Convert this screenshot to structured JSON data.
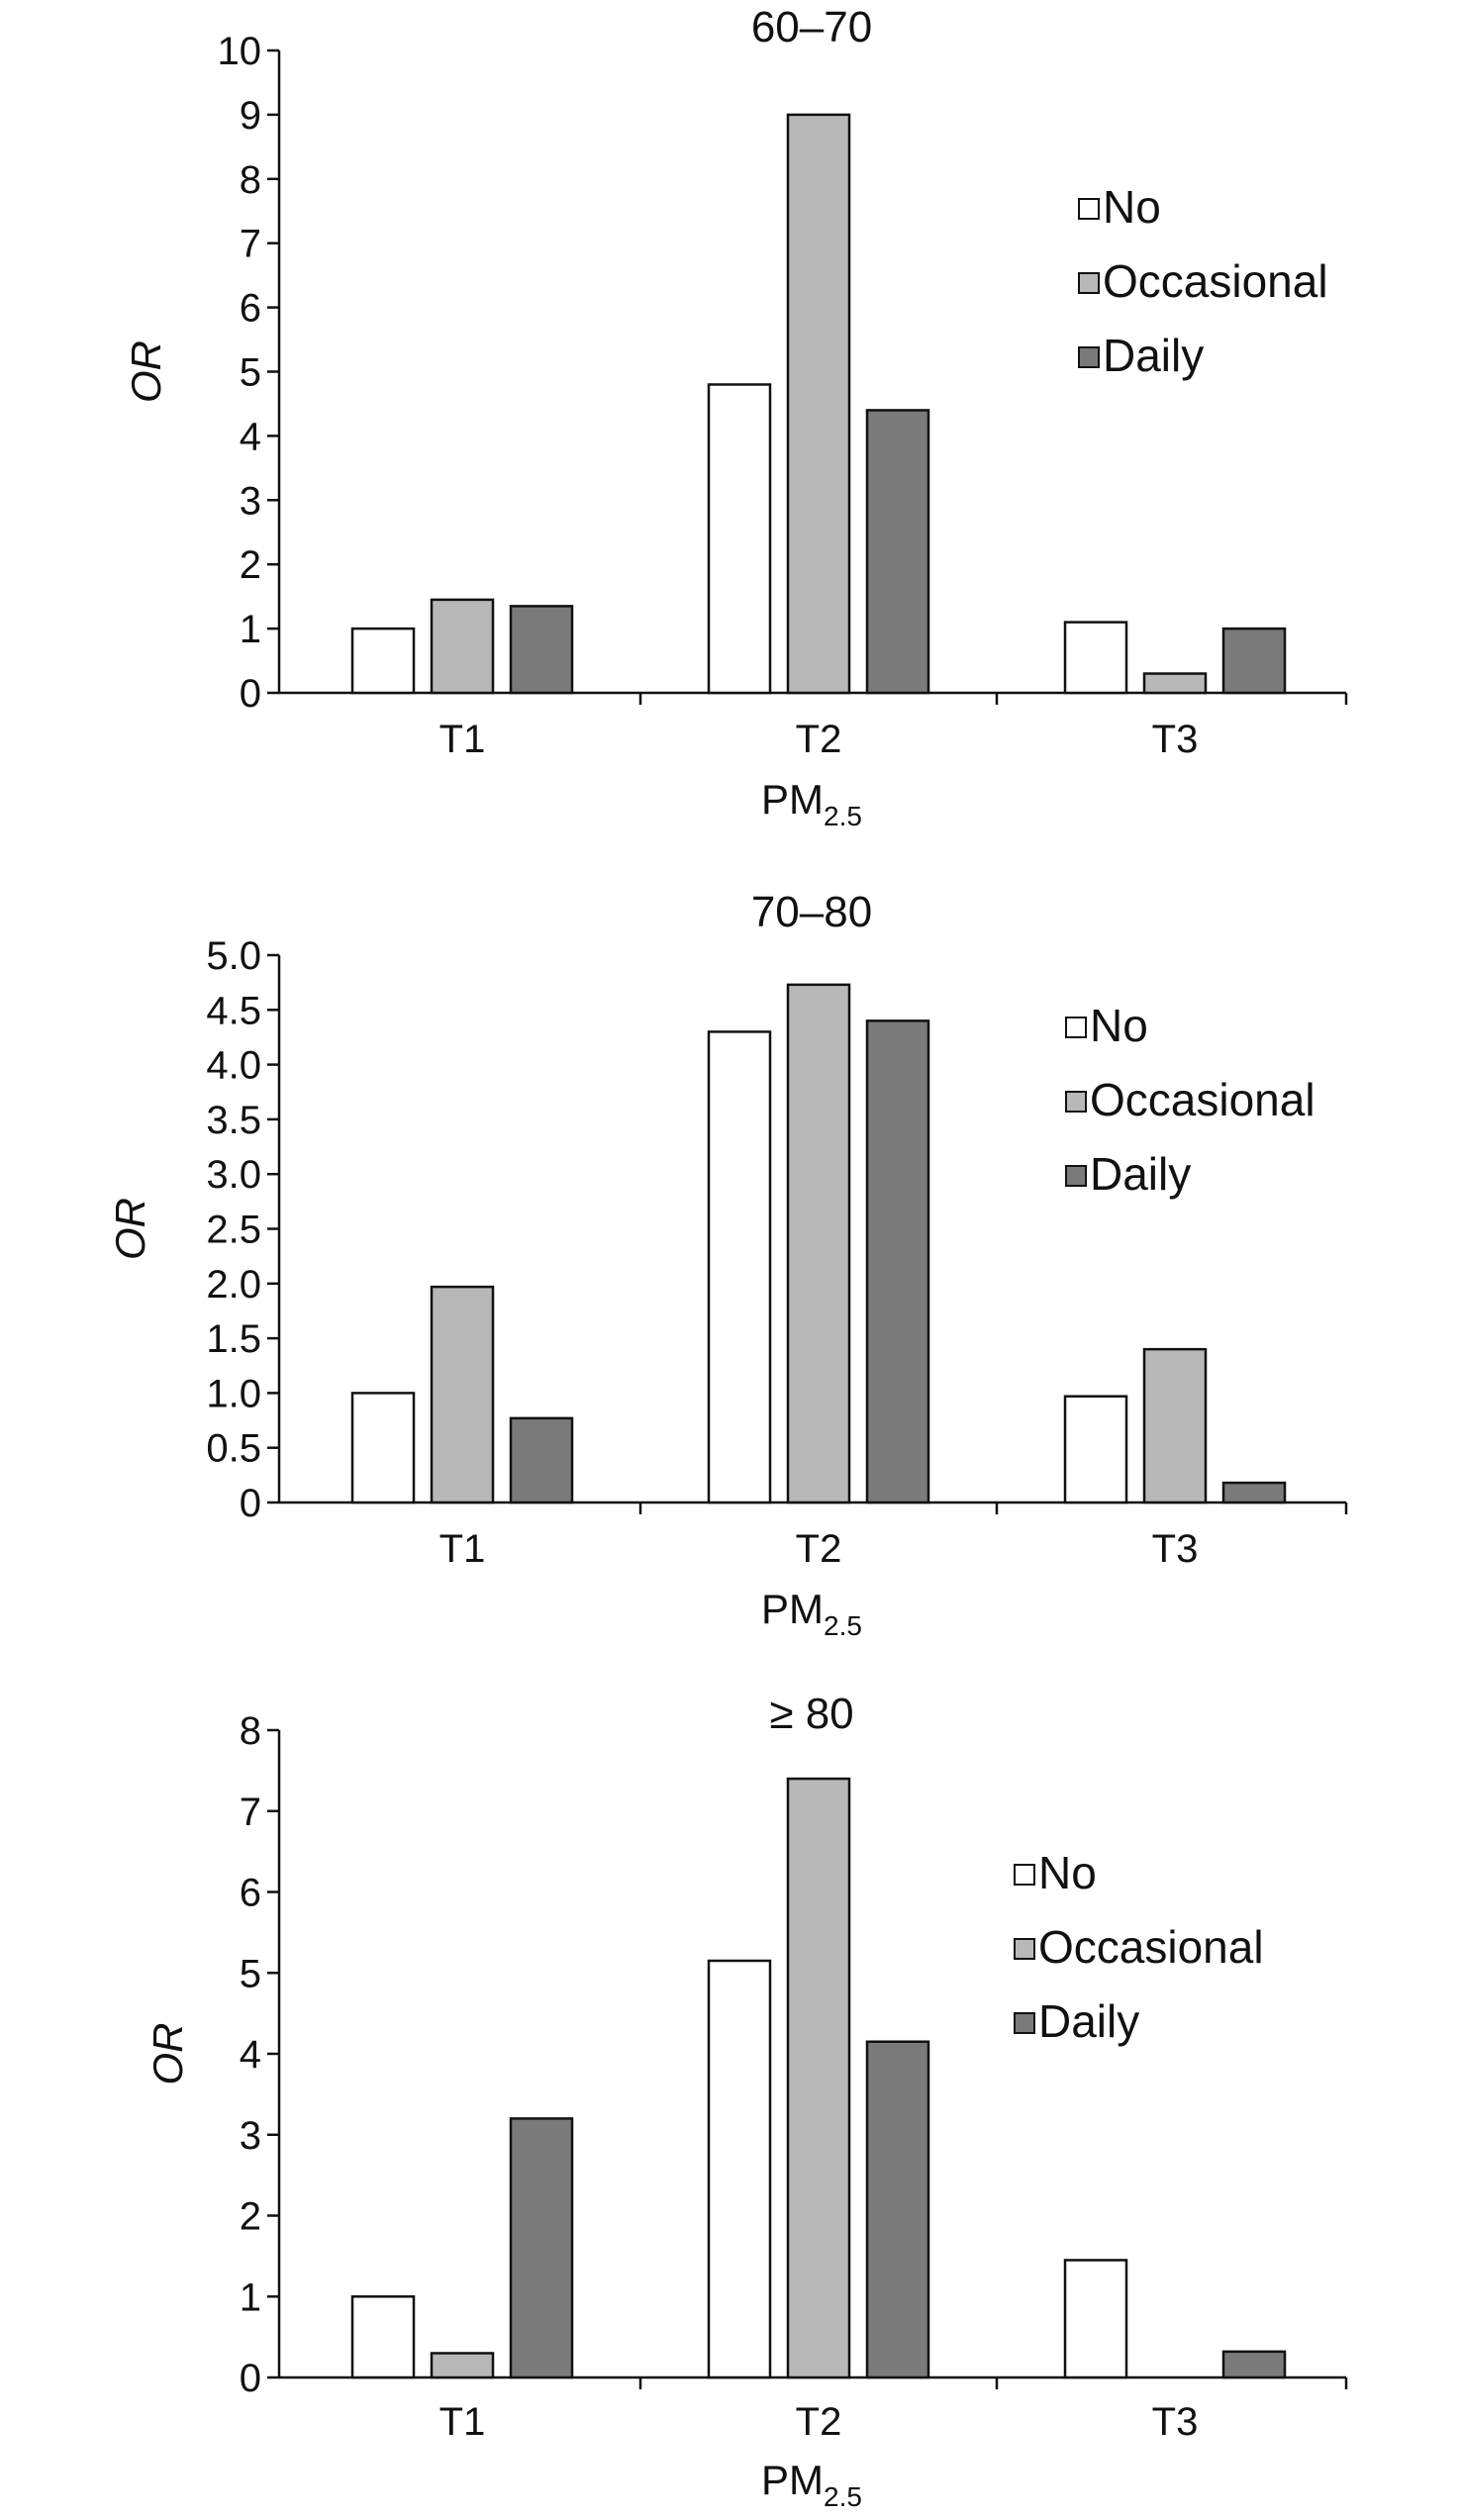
{
  "chart_data": [
    {
      "type": "bar",
      "title": "60–70",
      "xlabel": "PM",
      "xlabel_sub": "2.5",
      "ylabel": "OR",
      "categories": [
        "T1",
        "T2",
        "T3"
      ],
      "ylim": [
        0,
        10
      ],
      "yticks": [
        0,
        1,
        2,
        3,
        4,
        5,
        6,
        7,
        8,
        9,
        10
      ],
      "ytick_labels": [
        "0",
        "1",
        "2",
        "3",
        "4",
        "5",
        "6",
        "7",
        "8",
        "9",
        "10"
      ],
      "grid": false,
      "legend_position": "right",
      "series": [
        {
          "name": "No",
          "color": "#ffffff",
          "values": [
            1.0,
            4.8,
            1.1
          ]
        },
        {
          "name": "Occasional",
          "color": "#b8b8b8",
          "values": [
            1.45,
            9.0,
            0.3
          ]
        },
        {
          "name": "Daily",
          "color": "#7a7a7a",
          "values": [
            1.35,
            4.4,
            1.0
          ]
        }
      ]
    },
    {
      "type": "bar",
      "title": "70–80",
      "xlabel": "PM",
      "xlabel_sub": "2.5",
      "ylabel": "OR",
      "categories": [
        "T1",
        "T2",
        "T3"
      ],
      "ylim": [
        0,
        5
      ],
      "yticks": [
        0,
        0.5,
        1,
        1.5,
        2,
        2.5,
        3,
        3.5,
        4,
        4.5,
        5
      ],
      "ytick_labels": [
        "0",
        "0.5",
        "1.0",
        "1.5",
        "2.0",
        "2.5",
        "3.0",
        "3.5",
        "4.0",
        "4.5",
        "5.0"
      ],
      "grid": false,
      "legend_position": "right",
      "series": [
        {
          "name": "No",
          "color": "#ffffff",
          "values": [
            1.0,
            4.3,
            0.97
          ]
        },
        {
          "name": "Occasional",
          "color": "#b8b8b8",
          "values": [
            1.97,
            4.73,
            1.4
          ]
        },
        {
          "name": "Daily",
          "color": "#7a7a7a",
          "values": [
            0.77,
            4.4,
            0.18
          ]
        }
      ]
    },
    {
      "type": "bar",
      "title": "≥ 80",
      "xlabel": "PM",
      "xlabel_sub": "2.5",
      "ylabel": "OR",
      "categories": [
        "T1",
        "T2",
        "T3"
      ],
      "ylim": [
        0,
        8
      ],
      "yticks": [
        0,
        1,
        2,
        3,
        4,
        5,
        6,
        7,
        8
      ],
      "ytick_labels": [
        "0",
        "1",
        "2",
        "3",
        "4",
        "5",
        "6",
        "7",
        "8"
      ],
      "grid": false,
      "legend_position": "right",
      "series": [
        {
          "name": "No",
          "color": "#ffffff",
          "values": [
            1.0,
            5.15,
            1.45
          ]
        },
        {
          "name": "Occasional",
          "color": "#b8b8b8",
          "values": [
            0.3,
            7.4,
            0
          ]
        },
        {
          "name": "Daily",
          "color": "#7a7a7a",
          "values": [
            3.2,
            4.15,
            0.32
          ]
        }
      ]
    }
  ]
}
